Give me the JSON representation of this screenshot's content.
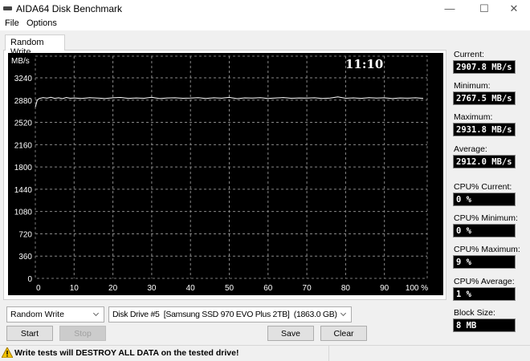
{
  "window": {
    "title": "AIDA64 Disk Benchmark",
    "icon": "disk-icon",
    "minimize": "—",
    "maximize": "☐",
    "close": "✕"
  },
  "menu": [
    "File",
    "Options"
  ],
  "tab": "Random Write",
  "chart_data": {
    "type": "line",
    "ylabel": "MB/s",
    "ylim": [
      0,
      3600
    ],
    "xlim": [
      0,
      100
    ],
    "yticks": [
      "0",
      "360",
      "720",
      "1080",
      "1440",
      "1800",
      "2160",
      "2520",
      "2880",
      "3240"
    ],
    "xticks": [
      "0",
      "10",
      "20",
      "30",
      "40",
      "50",
      "60",
      "70",
      "80",
      "90",
      "100 %"
    ],
    "overlay_time": "11:10",
    "grid": true,
    "line_color": "#ffffff",
    "background": "#000000",
    "series": [
      {
        "x": [
          0,
          0.5,
          1,
          2,
          3,
          4,
          5,
          6,
          7,
          8,
          9,
          10,
          12,
          14,
          16,
          18,
          20,
          22,
          24,
          26,
          28,
          30,
          32,
          34,
          36,
          38,
          40,
          42,
          44,
          46,
          48,
          50,
          52,
          54,
          56,
          58,
          60,
          62,
          64,
          66,
          68,
          70,
          72,
          74,
          76,
          78,
          80,
          82,
          84,
          86,
          88,
          90,
          92,
          94,
          96,
          98,
          100
        ],
        "y": [
          2767.5,
          2880,
          2905,
          2920,
          2912,
          2925,
          2908,
          2918,
          2904,
          2922,
          2910,
          2915,
          2906,
          2920,
          2912,
          2905,
          2918,
          2922,
          2908,
          2914,
          2910,
          2926,
          2904,
          2915,
          2918,
          2909,
          2913,
          2920,
          2906,
          2917,
          2911,
          2924,
          2903,
          2916,
          2912,
          2919,
          2907,
          2914,
          2921,
          2909,
          2915,
          2912,
          2918,
          2906,
          2913,
          2931.8,
          2910,
          2916,
          2908,
          2920,
          2912,
          2917,
          2905,
          2914,
          2911,
          2918,
          2907.8
        ]
      }
    ]
  },
  "stats": [
    {
      "label": "Current:",
      "value": "2907.8 MB/s"
    },
    {
      "label": "Minimum:",
      "value": "2767.5 MB/s"
    },
    {
      "label": "Maximum:",
      "value": "2931.8 MB/s"
    },
    {
      "label": "Average:",
      "value": "2912.0 MB/s"
    },
    {
      "label": "CPU% Current:",
      "value": "0 %"
    },
    {
      "label": "CPU% Minimum:",
      "value": "0 %"
    },
    {
      "label": "CPU% Maximum:",
      "value": "9 %"
    },
    {
      "label": "CPU% Average:",
      "value": "1 %"
    },
    {
      "label": "Block Size:",
      "value": "8 MB"
    }
  ],
  "controls": {
    "test_select": "Random Write",
    "drive_select": "Disk Drive #5  [Samsung SSD 970 EVO Plus 2TB]  (1863.0 GB)",
    "start": "Start",
    "stop": "Stop",
    "save": "Save",
    "clear": "Clear"
  },
  "status": {
    "warning": "Write tests will DESTROY ALL DATA on the tested drive!",
    "icon": "warning-icon"
  }
}
